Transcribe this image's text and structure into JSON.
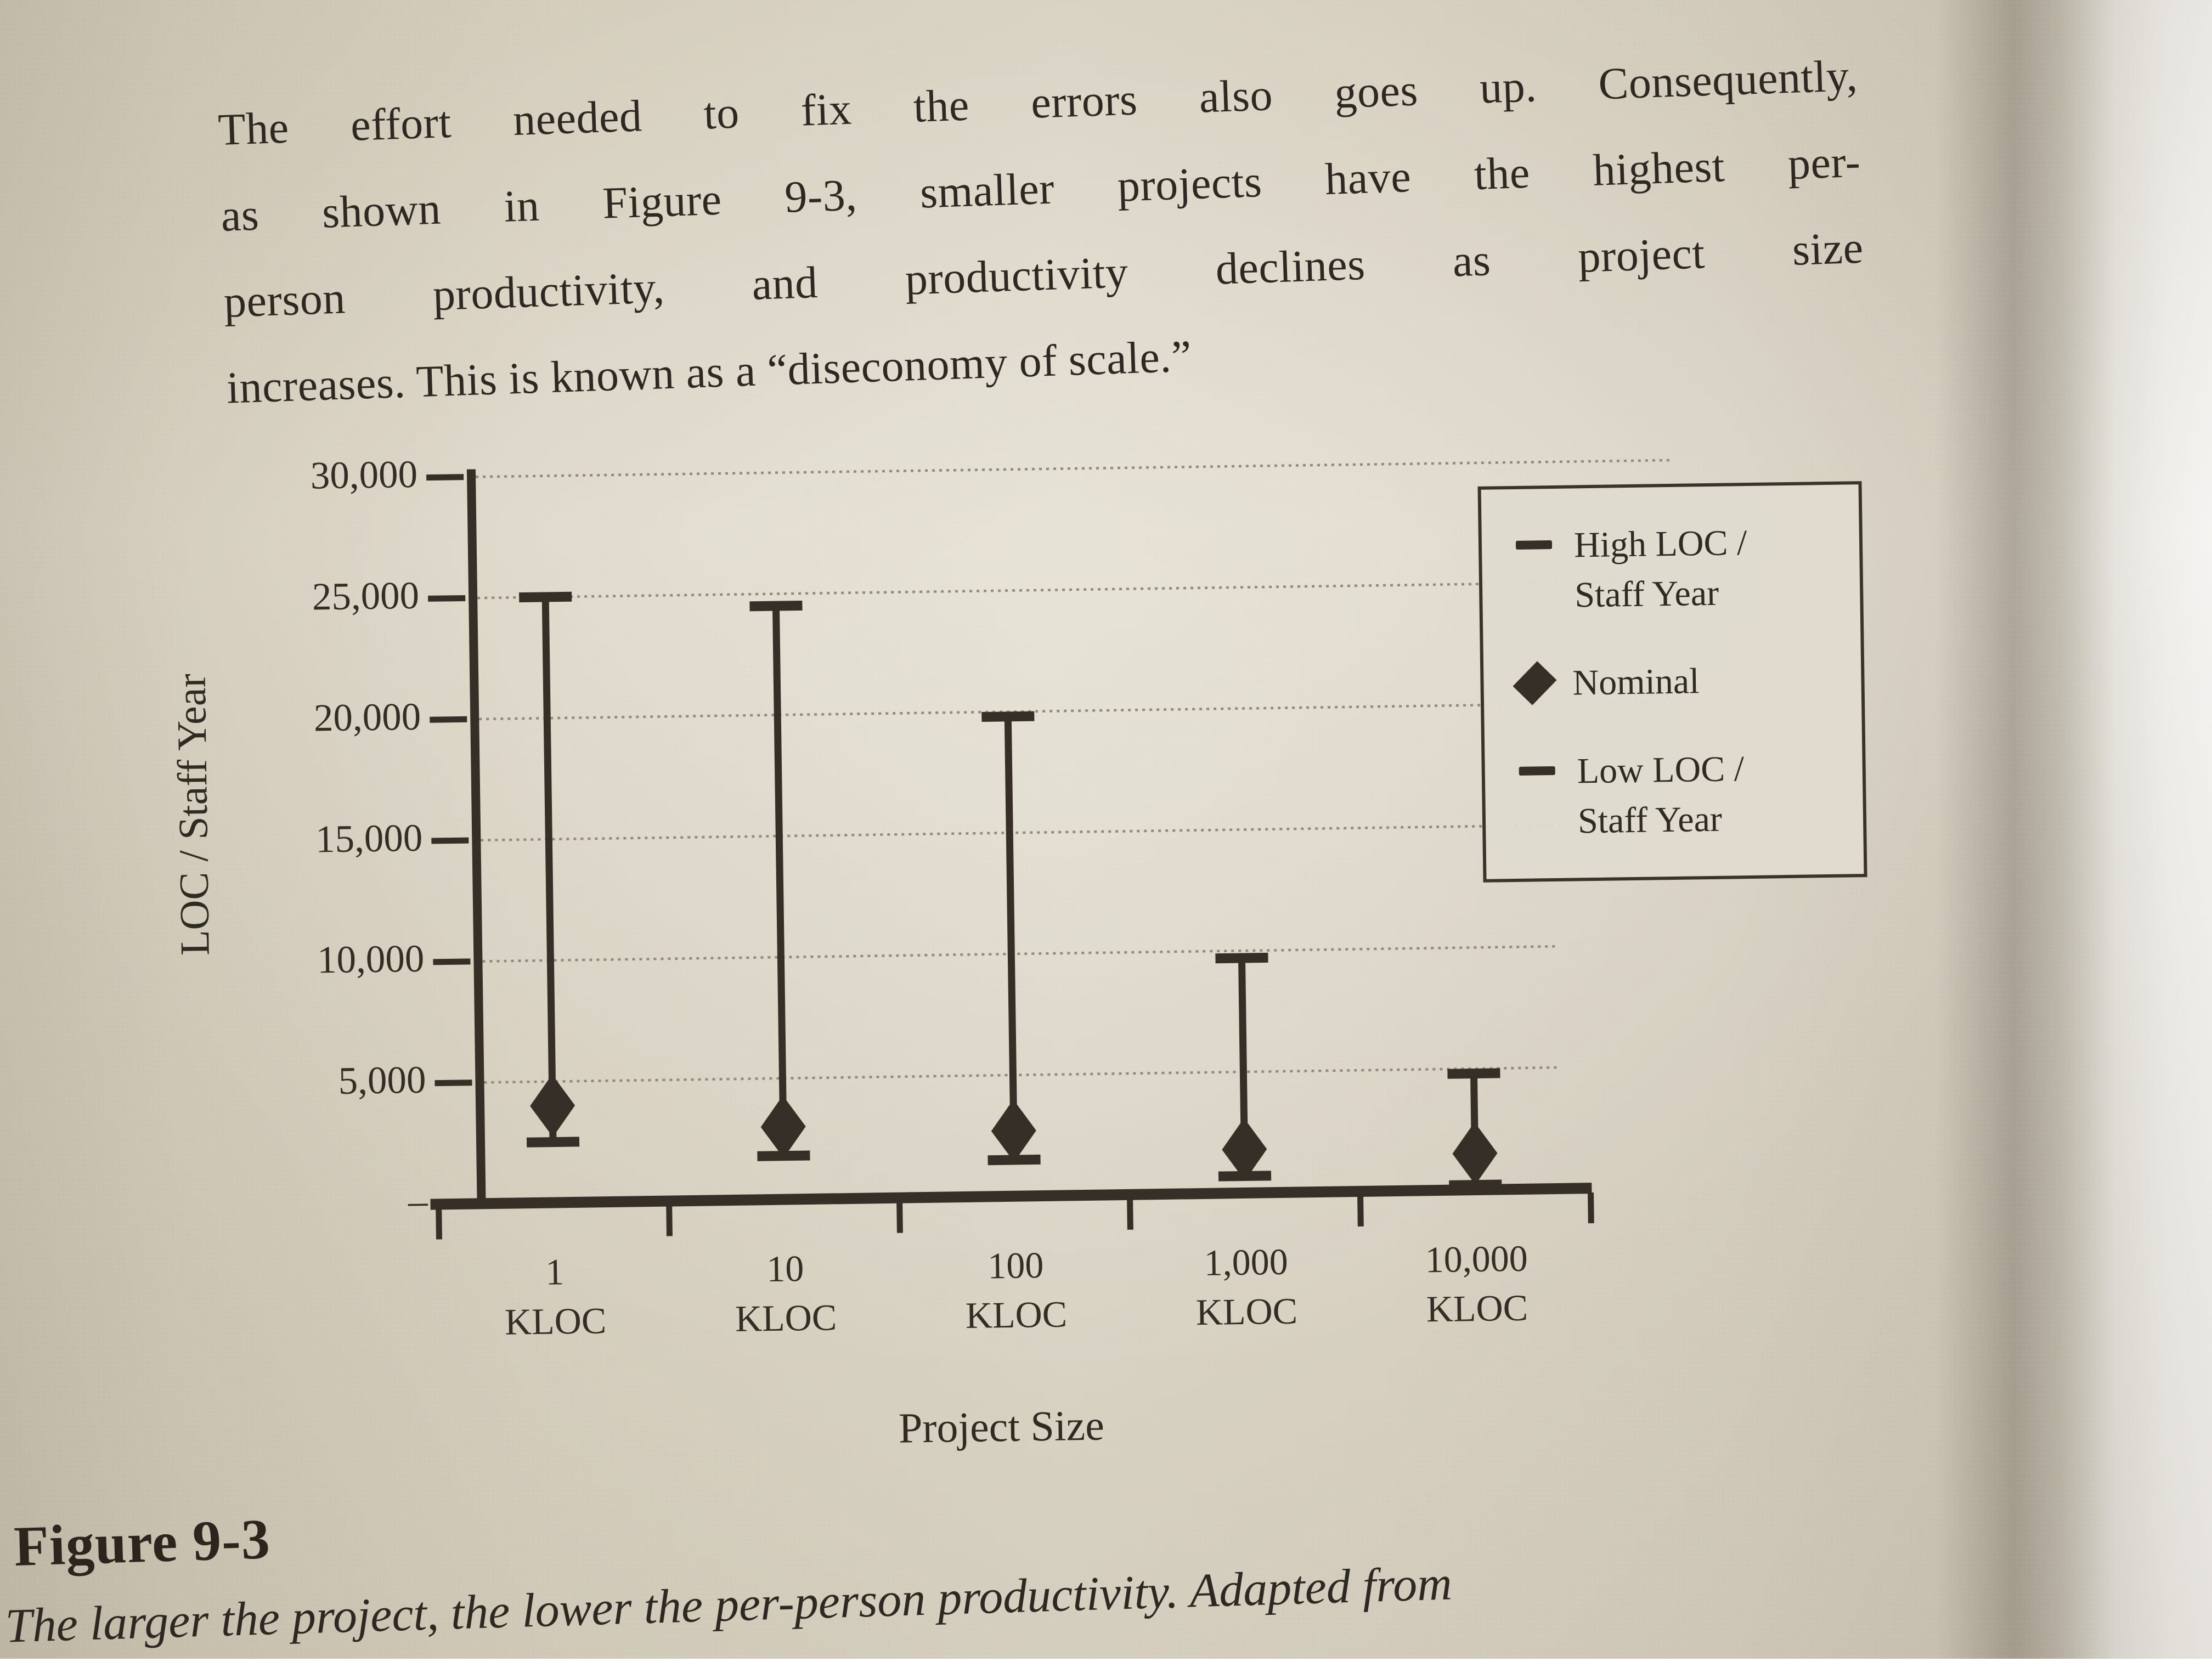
{
  "page": {
    "paragraph_lines": [
      "The effort needed to fix the errors also goes up. Consequently,",
      "as shown in Figure 9-3, smaller projects have the highest per-",
      "person productivity, and productivity declines as project size",
      "increases. This is known as a “diseconomy of scale.”"
    ],
    "figure_label": "Figure 9-3",
    "figure_caption": "The larger the project, the lower the per-person productivity. Adapted from"
  },
  "chart_data": {
    "type": "scatter",
    "style": "high-low-whisker",
    "title": "",
    "xlabel": "Project Size",
    "ylabel": "LOC / Staff Year",
    "categories": [
      "1",
      "10",
      "100",
      "1,000",
      "10,000"
    ],
    "category_unit": "KLOC",
    "ylim": [
      0,
      30000
    ],
    "ytick_step": 5000,
    "yticks": [
      {
        "value": 30000,
        "label": "30,000"
      },
      {
        "value": 25000,
        "label": "25,000"
      },
      {
        "value": 20000,
        "label": "20,000"
      },
      {
        "value": 15000,
        "label": "15,000"
      },
      {
        "value": 10000,
        "label": "10,000"
      },
      {
        "value": 5000,
        "label": "5,000"
      },
      {
        "value": 0,
        "label": "–"
      }
    ],
    "grid": "horizontal-dotted",
    "series": [
      {
        "name": "High LOC / Staff Year",
        "marker": "dash",
        "values": [
          25000,
          24500,
          19800,
          9700,
          4800
        ]
      },
      {
        "name": "Nominal",
        "marker": "diamond",
        "values": [
          4000,
          3000,
          2700,
          1800,
          1500
        ]
      },
      {
        "name": "Low LOC / Staff Year",
        "marker": "dash",
        "values": [
          2500,
          1800,
          1500,
          700,
          200
        ]
      }
    ],
    "legend": {
      "position": "right-top",
      "entries": [
        {
          "marker": "dash-icon",
          "label": "High LOC /\nStaff Year"
        },
        {
          "marker": "diamond-icon",
          "label": "Nominal"
        },
        {
          "marker": "dash-icon",
          "label": "Low LOC /\nStaff Year"
        }
      ]
    }
  },
  "colors": {
    "ink": "#2e2822",
    "chart_ink": "#352f27",
    "gridline": "#8e8676",
    "paper": "#ddd7c8",
    "paper_crease_shadow": "#a8a193",
    "adjacent_page": "#f0efeb"
  }
}
